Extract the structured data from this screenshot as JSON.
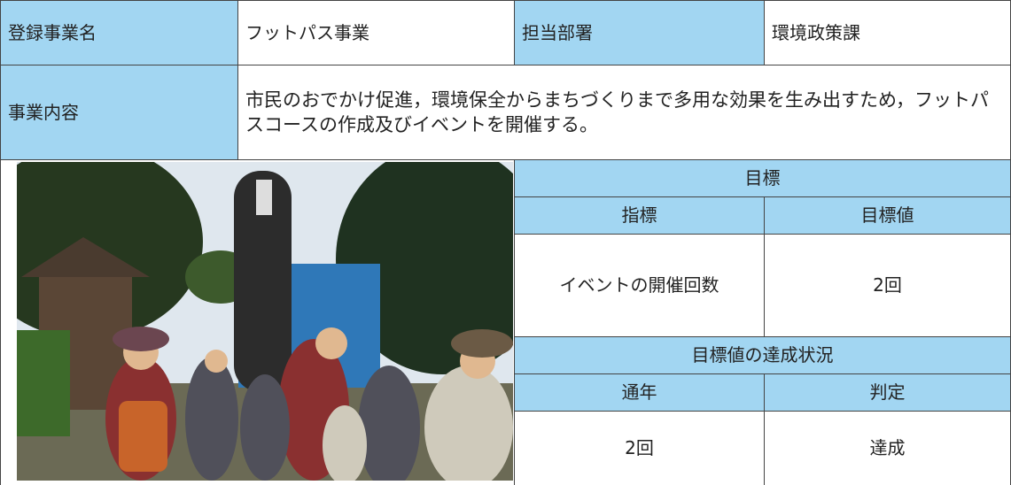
{
  "header": {
    "name_label": "登録事業名",
    "name": "フットパス事業",
    "dept_label": "担当部署",
    "dept": "環境政策課"
  },
  "content": {
    "label": "事業内容",
    "text": "市民のおでかけ促進，環境保全からまちづくりまで多用な効果を生み出すため，フットパスコースの作成及びイベントを開催する。"
  },
  "target": {
    "title": "目標",
    "columns": [
      "指標",
      "目標値"
    ],
    "rows": [
      [
        "イベントの開催回数",
        "2回"
      ]
    ]
  },
  "achievement": {
    "title": "目標値の達成状況",
    "columns": [
      "通年",
      "判定"
    ],
    "rows": [
      [
        "2回",
        "達成"
      ]
    ]
  }
}
